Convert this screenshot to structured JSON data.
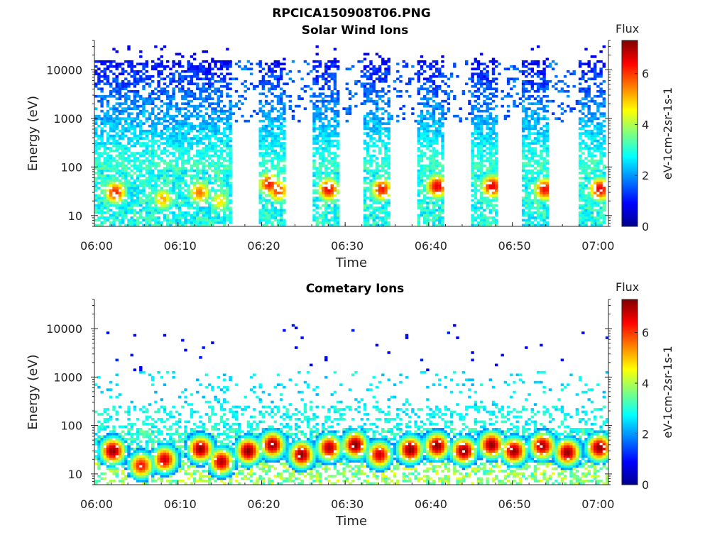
{
  "figure": {
    "title": "RPCICA150908T06.PNG"
  },
  "colorscale": {
    "title": "Flux",
    "stops": [
      "#00008f",
      "#0000ff",
      "#007fff",
      "#00ffff",
      "#7fff7f",
      "#ffff00",
      "#ff7f00",
      "#ff0000",
      "#7f0000"
    ]
  },
  "chart_data": [
    {
      "type": "heatmap",
      "title": "Solar Wind Ions",
      "xlabel": "Time",
      "ylabel": "Energy (eV)",
      "x_ticks": [
        "06:00",
        "06:10",
        "06:20",
        "06:30",
        "06:40",
        "06:50",
        "07:00"
      ],
      "x_range_min": [
        0,
        61.5
      ],
      "y_scale": "log",
      "y_ticks": [
        "10",
        "100",
        "1000",
        "10000"
      ],
      "y_range": [
        6,
        40000
      ],
      "colorbar": {
        "label": "eV-1cm-2sr-1s-1",
        "ticks": [
          "0",
          "2",
          "4",
          "6"
        ],
        "range": [
          0,
          7.3
        ]
      },
      "active_intervals_min": [
        [
          0,
          16.5
        ],
        [
          19.5,
          22.8
        ],
        [
          26,
          29.3
        ],
        [
          32.2,
          35.3
        ],
        [
          38.5,
          41.7
        ],
        [
          45,
          48.3
        ],
        [
          51.2,
          54.5
        ],
        [
          58,
          61.2
        ]
      ],
      "sparse_intervals_min": [
        [
          16.5,
          19.5
        ],
        [
          22.8,
          26
        ],
        [
          29.3,
          32.2
        ],
        [
          35.3,
          38.5
        ],
        [
          41.7,
          45
        ],
        [
          48.3,
          51.2
        ],
        [
          54.5,
          58
        ]
      ],
      "peaks": [
        {
          "t": 2.5,
          "e": 30,
          "v": 6.2
        },
        {
          "t": 8.2,
          "e": 22,
          "v": 5.2
        },
        {
          "t": 12.6,
          "e": 30,
          "v": 5.6
        },
        {
          "t": 15,
          "e": 20,
          "v": 4.8
        },
        {
          "t": 20.9,
          "e": 45,
          "v": 6.3
        },
        {
          "t": 22,
          "e": 33,
          "v": 6
        },
        {
          "t": 28,
          "e": 35,
          "v": 6.5
        },
        {
          "t": 34.4,
          "e": 35,
          "v": 6.3
        },
        {
          "t": 41,
          "e": 40,
          "v": 6.6
        },
        {
          "t": 47.6,
          "e": 40,
          "v": 6.6
        },
        {
          "t": 53.9,
          "e": 35,
          "v": 6.4
        },
        {
          "t": 60.5,
          "e": 35,
          "v": 6.6
        }
      ]
    },
    {
      "type": "heatmap",
      "title": "Cometary Ions",
      "xlabel": "Time",
      "ylabel": "Energy (eV)",
      "x_ticks": [
        "06:00",
        "06:10",
        "06:20",
        "06:30",
        "06:40",
        "06:50",
        "07:00"
      ],
      "x_range_min": [
        0,
        61.5
      ],
      "y_scale": "log",
      "y_ticks": [
        "10",
        "100",
        "1000",
        "10000"
      ],
      "y_range": [
        6,
        40000
      ],
      "colorbar": {
        "label": "eV-1cm-2sr-1s-1",
        "ticks": [
          "0",
          "2",
          "4",
          "6"
        ],
        "range": [
          0,
          7.3
        ]
      },
      "peaks": [
        {
          "t": 2.2,
          "e": 30,
          "v": 7.2
        },
        {
          "t": 5.6,
          "e": 15,
          "v": 6.4
        },
        {
          "t": 8.4,
          "e": 20,
          "v": 6.8
        },
        {
          "t": 12.7,
          "e": 33,
          "v": 7.2
        },
        {
          "t": 15.2,
          "e": 18,
          "v": 7
        },
        {
          "t": 18.4,
          "e": 30,
          "v": 7.3
        },
        {
          "t": 21.3,
          "e": 40,
          "v": 7.2
        },
        {
          "t": 24.8,
          "e": 25,
          "v": 7.2
        },
        {
          "t": 28.1,
          "e": 35,
          "v": 7
        },
        {
          "t": 31.2,
          "e": 40,
          "v": 7.3
        },
        {
          "t": 34.1,
          "e": 25,
          "v": 6.8
        },
        {
          "t": 37.8,
          "e": 32,
          "v": 7.3
        },
        {
          "t": 41,
          "e": 38,
          "v": 7.2
        },
        {
          "t": 44.2,
          "e": 30,
          "v": 7.3
        },
        {
          "t": 47.5,
          "e": 40,
          "v": 7.2
        },
        {
          "t": 50.2,
          "e": 30,
          "v": 7.2
        },
        {
          "t": 53.6,
          "e": 38,
          "v": 7.1
        },
        {
          "t": 56.6,
          "e": 28,
          "v": 7.2
        },
        {
          "t": 60.4,
          "e": 35,
          "v": 7.2
        }
      ]
    }
  ]
}
